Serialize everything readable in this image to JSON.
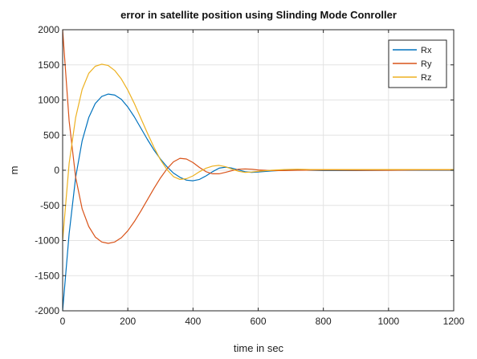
{
  "chart_data": {
    "type": "line",
    "title": "error in satellite position using Slinding Mode Conroller",
    "xlabel": "time in sec",
    "ylabel": "m",
    "xlim": [
      0,
      1200
    ],
    "ylim": [
      -2000,
      2000
    ],
    "xticks": [
      0,
      200,
      400,
      600,
      800,
      1000,
      1200
    ],
    "yticks": [
      -2000,
      -1500,
      -1000,
      -500,
      0,
      500,
      1000,
      1500,
      2000
    ],
    "grid": true,
    "legend_position": "top-right",
    "series": [
      {
        "name": "Rx",
        "color": "#0072BD",
        "points": [
          [
            0,
            -2000
          ],
          [
            20,
            -900
          ],
          [
            40,
            -100
          ],
          [
            60,
            420
          ],
          [
            80,
            750
          ],
          [
            100,
            950
          ],
          [
            120,
            1050
          ],
          [
            140,
            1085
          ],
          [
            160,
            1070
          ],
          [
            180,
            1010
          ],
          [
            200,
            900
          ],
          [
            220,
            760
          ],
          [
            240,
            600
          ],
          [
            260,
            440
          ],
          [
            280,
            290
          ],
          [
            300,
            160
          ],
          [
            320,
            50
          ],
          [
            340,
            -40
          ],
          [
            360,
            -100
          ],
          [
            380,
            -140
          ],
          [
            400,
            -150
          ],
          [
            420,
            -130
          ],
          [
            440,
            -80
          ],
          [
            460,
            -20
          ],
          [
            480,
            30
          ],
          [
            500,
            45
          ],
          [
            520,
            30
          ],
          [
            540,
            5
          ],
          [
            560,
            -20
          ],
          [
            580,
            -30
          ],
          [
            600,
            -25
          ],
          [
            640,
            -10
          ],
          [
            680,
            0
          ],
          [
            720,
            5
          ],
          [
            760,
            0
          ],
          [
            800,
            -5
          ],
          [
            900,
            -5
          ],
          [
            1000,
            0
          ],
          [
            1100,
            0
          ],
          [
            1200,
            0
          ]
        ]
      },
      {
        "name": "Ry",
        "color": "#D95319",
        "points": [
          [
            0,
            2000
          ],
          [
            20,
            700
          ],
          [
            40,
            -100
          ],
          [
            60,
            -550
          ],
          [
            80,
            -800
          ],
          [
            100,
            -950
          ],
          [
            120,
            -1020
          ],
          [
            140,
            -1040
          ],
          [
            160,
            -1020
          ],
          [
            180,
            -960
          ],
          [
            200,
            -860
          ],
          [
            220,
            -730
          ],
          [
            240,
            -580
          ],
          [
            260,
            -420
          ],
          [
            280,
            -260
          ],
          [
            300,
            -110
          ],
          [
            320,
            20
          ],
          [
            340,
            120
          ],
          [
            360,
            170
          ],
          [
            380,
            160
          ],
          [
            400,
            110
          ],
          [
            420,
            40
          ],
          [
            440,
            -20
          ],
          [
            460,
            -50
          ],
          [
            480,
            -50
          ],
          [
            500,
            -30
          ],
          [
            520,
            -5
          ],
          [
            540,
            15
          ],
          [
            560,
            20
          ],
          [
            580,
            15
          ],
          [
            600,
            5
          ],
          [
            640,
            -5
          ],
          [
            680,
            -5
          ],
          [
            720,
            0
          ],
          [
            800,
            5
          ],
          [
            900,
            0
          ],
          [
            1000,
            0
          ],
          [
            1100,
            5
          ],
          [
            1200,
            5
          ]
        ]
      },
      {
        "name": "Rz",
        "color": "#EDB120",
        "points": [
          [
            0,
            -1000
          ],
          [
            20,
            100
          ],
          [
            40,
            750
          ],
          [
            60,
            1150
          ],
          [
            80,
            1380
          ],
          [
            100,
            1480
          ],
          [
            120,
            1510
          ],
          [
            140,
            1490
          ],
          [
            160,
            1420
          ],
          [
            180,
            1300
          ],
          [
            200,
            1140
          ],
          [
            220,
            950
          ],
          [
            240,
            740
          ],
          [
            260,
            530
          ],
          [
            280,
            330
          ],
          [
            300,
            150
          ],
          [
            320,
            10
          ],
          [
            340,
            -90
          ],
          [
            360,
            -130
          ],
          [
            380,
            -120
          ],
          [
            400,
            -80
          ],
          [
            420,
            -20
          ],
          [
            440,
            30
          ],
          [
            460,
            60
          ],
          [
            480,
            70
          ],
          [
            500,
            50
          ],
          [
            520,
            15
          ],
          [
            540,
            -15
          ],
          [
            560,
            -30
          ],
          [
            580,
            -25
          ],
          [
            600,
            -15
          ],
          [
            640,
            0
          ],
          [
            680,
            10
          ],
          [
            720,
            15
          ],
          [
            760,
            10
          ],
          [
            800,
            10
          ],
          [
            900,
            10
          ],
          [
            1000,
            10
          ],
          [
            1100,
            10
          ],
          [
            1200,
            10
          ]
        ]
      }
    ]
  }
}
